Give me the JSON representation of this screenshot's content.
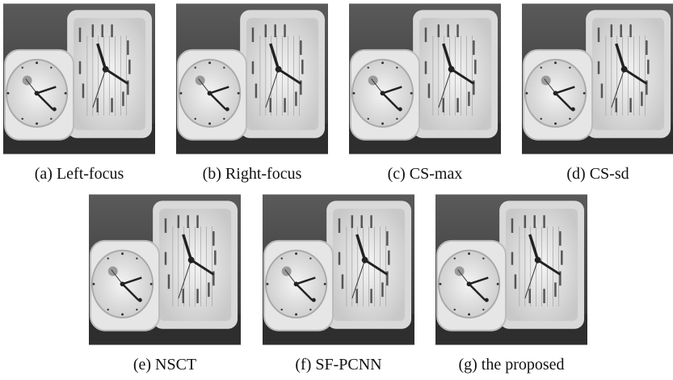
{
  "figure": {
    "panels": [
      {
        "caption": "(a) Left-focus"
      },
      {
        "caption": "(b) Right-focus"
      },
      {
        "caption": "(c) CS-max"
      },
      {
        "caption": "(d) CS-sd"
      },
      {
        "caption": "(e) NSCT"
      },
      {
        "caption": "(f) SF-PCNN"
      },
      {
        "caption": "(g) the proposed"
      }
    ]
  }
}
